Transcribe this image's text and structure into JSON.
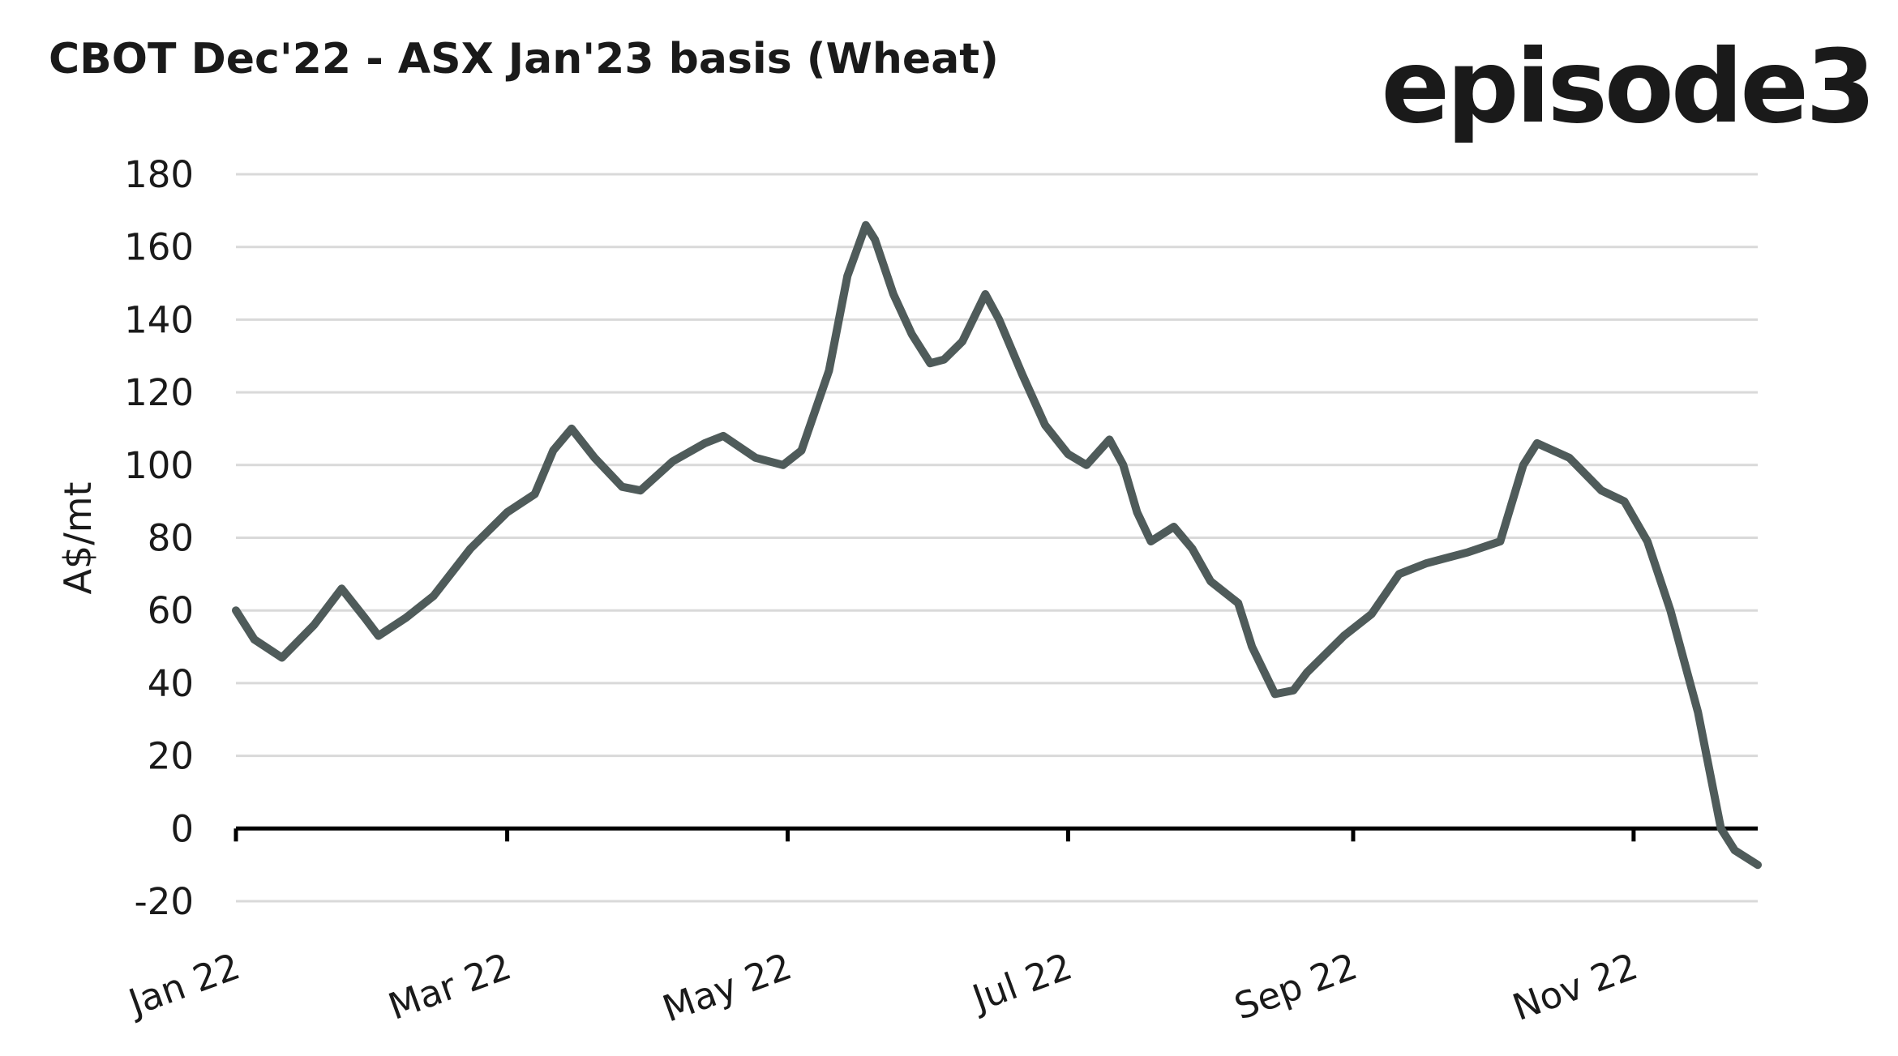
{
  "brand": "episode3",
  "chart_data": {
    "type": "line",
    "title": "CBOT Dec'22 - ASX Jan'23 basis (Wheat)",
    "y_label": "A$/mt",
    "x": [
      0,
      4,
      10,
      17,
      23,
      28,
      31,
      37,
      43,
      51,
      59,
      65,
      69,
      73,
      78,
      84,
      88,
      95,
      102,
      106,
      113,
      119,
      123,
      129,
      133,
      137,
      139,
      143,
      147,
      151,
      154,
      158,
      163,
      166,
      171,
      176,
      181,
      185,
      190,
      193,
      196,
      199,
      204,
      208,
      212,
      218,
      221,
      226,
      230,
      233,
      241,
      247,
      253,
      259,
      268,
      275,
      280,
      283,
      290,
      297,
      302,
      307,
      312,
      318,
      323,
      326,
      331
    ],
    "series": [
      {
        "name": "CBOT Dec'22 - ASX Jan'23 basis",
        "color": "#4f5b5a",
        "values": [
          60,
          52,
          47,
          56,
          66,
          58,
          53,
          58,
          64,
          77,
          87,
          92,
          104,
          110,
          102,
          94,
          93,
          101,
          106,
          108,
          102,
          100,
          104,
          126,
          152,
          166,
          162,
          147,
          136,
          128,
          129,
          134,
          147,
          140,
          125,
          111,
          103,
          100,
          107,
          100,
          87,
          79,
          83,
          77,
          68,
          62,
          50,
          37,
          38,
          43,
          53,
          59,
          70,
          73,
          76,
          79,
          100,
          106,
          102,
          93,
          90,
          79,
          60,
          32,
          0,
          -6,
          -10
        ]
      }
    ],
    "xlim": [
      0,
      331
    ],
    "xticks": [
      {
        "value": 0,
        "label": "Jan 22"
      },
      {
        "value": 59,
        "label": "Mar 22"
      },
      {
        "value": 120,
        "label": "May 22"
      },
      {
        "value": 181,
        "label": "Jul 22"
      },
      {
        "value": 243,
        "label": "Sep 22"
      },
      {
        "value": 304,
        "label": "Nov 22"
      }
    ],
    "ylim": [
      -20,
      180
    ],
    "yticks": [
      -20,
      0,
      20,
      40,
      60,
      80,
      100,
      120,
      140,
      160,
      180
    ],
    "grid": true
  }
}
